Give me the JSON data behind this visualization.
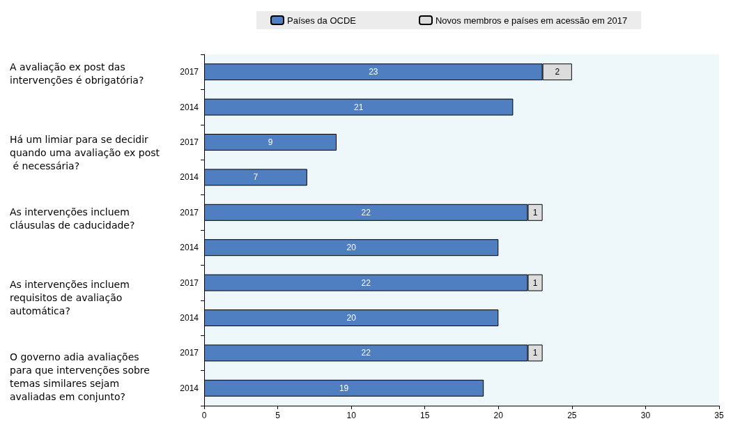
{
  "chart_data": {
    "type": "bar",
    "orientation": "horizontal",
    "stacked": true,
    "categories": [
      "2017",
      "2014",
      "2017",
      "2014",
      "2017",
      "2014",
      "2017",
      "2014",
      "2017",
      "2014"
    ],
    "series": [
      {
        "name": "Países da OCDE",
        "color": "#4f7fc0",
        "values": [
          23,
          21,
          9,
          7,
          22,
          20,
          22,
          20,
          22,
          19
        ]
      },
      {
        "name": "Novos membros e países em acessão em 2017",
        "color": "#dcdcdc",
        "values": [
          2,
          null,
          null,
          null,
          1,
          null,
          1,
          null,
          1,
          null
        ]
      }
    ],
    "data_labels": true,
    "xlim": [
      0,
      35
    ],
    "xticks": [
      0,
      5,
      10,
      15,
      20,
      25,
      30,
      35
    ],
    "grid": false,
    "legend": "top",
    "annotations": [
      "A avaliação ex post das intervenções é obrigatória?",
      "Há um limiar para se decidir quando uma avaliação ex post é necessária?",
      "As intervenções incluem cláusulas de caducidade?",
      "As intervenções incluem requisitos de avaliação automática?",
      "O governo adia avaliações para que intervenções sobre temas similares sejam avaliadas em conjunto?"
    ]
  }
}
